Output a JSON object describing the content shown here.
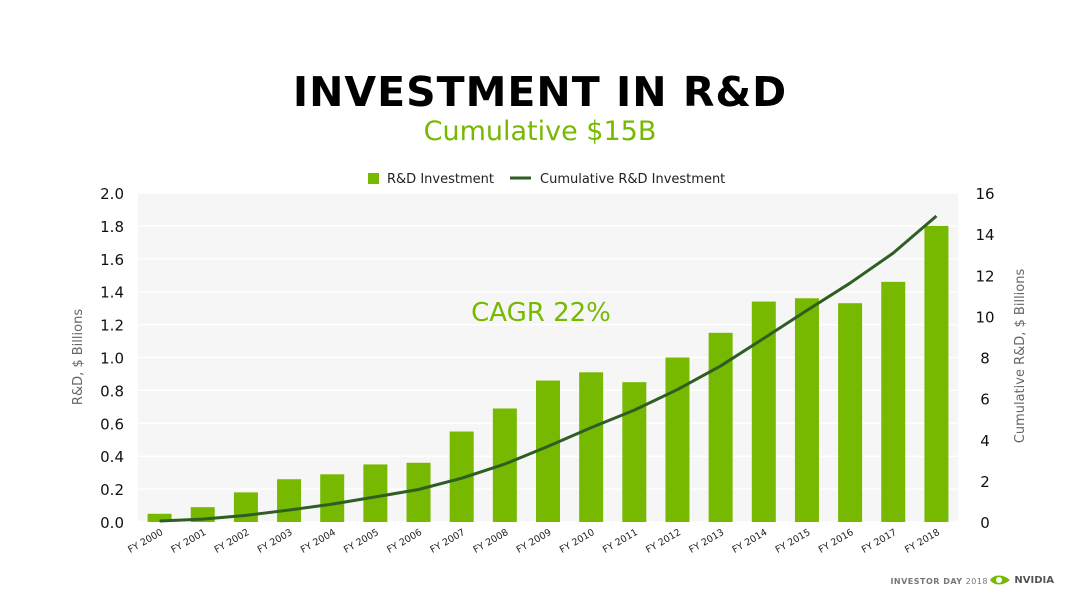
{
  "slide": {
    "title": "INVESTMENT IN R&D",
    "subtitle": "Cumulative $15B",
    "annotation": "CAGR 22%",
    "footer_event_bold": "INVESTOR DAY",
    "footer_event_year": "2018",
    "brand": "NVIDIA"
  },
  "colors": {
    "bar": "#76b900",
    "line": "#2e5e22",
    "annotation": "#76b900",
    "plot_bg": "#f6f6f6",
    "grid": "#ffffff"
  },
  "chart_data": {
    "type": "bar",
    "categories": [
      "FY 2000",
      "FY 2001",
      "FY 2002",
      "FY 2003",
      "FY 2004",
      "FY 2005",
      "FY 2006",
      "FY 2007",
      "FY 2008",
      "FY 2009",
      "FY 2010",
      "FY 2011",
      "FY 2012",
      "FY 2013",
      "FY 2014",
      "FY 2015",
      "FY 2016",
      "FY 2017",
      "FY 2018"
    ],
    "series": [
      {
        "name": "R&D Investment",
        "kind": "bar",
        "axis": "left",
        "values": [
          0.05,
          0.09,
          0.18,
          0.26,
          0.29,
          0.35,
          0.36,
          0.55,
          0.69,
          0.86,
          0.91,
          0.85,
          1.0,
          1.15,
          1.34,
          1.36,
          1.33,
          1.46,
          1.8
        ]
      },
      {
        "name": "Cumulative R&D Investment",
        "kind": "line",
        "axis": "right",
        "values": [
          0.05,
          0.14,
          0.32,
          0.58,
          0.87,
          1.22,
          1.58,
          2.13,
          2.82,
          3.68,
          4.59,
          5.44,
          6.44,
          7.59,
          8.93,
          10.29,
          11.62,
          13.08,
          14.88
        ]
      }
    ],
    "ylabel": "R&D, $ Billions",
    "y2label": "Cumulative R&D, $ Billions",
    "ylim": [
      0,
      2.0
    ],
    "y2lim": [
      0,
      16
    ],
    "yticks": [
      "0.0",
      "0.2",
      "0.4",
      "0.6",
      "0.8",
      "1.0",
      "1.2",
      "1.4",
      "1.6",
      "1.8",
      "2.0"
    ],
    "y2ticks": [
      "0",
      "2",
      "4",
      "6",
      "8",
      "10",
      "12",
      "14",
      "16"
    ],
    "legend_position": "top-center",
    "grid": true
  }
}
